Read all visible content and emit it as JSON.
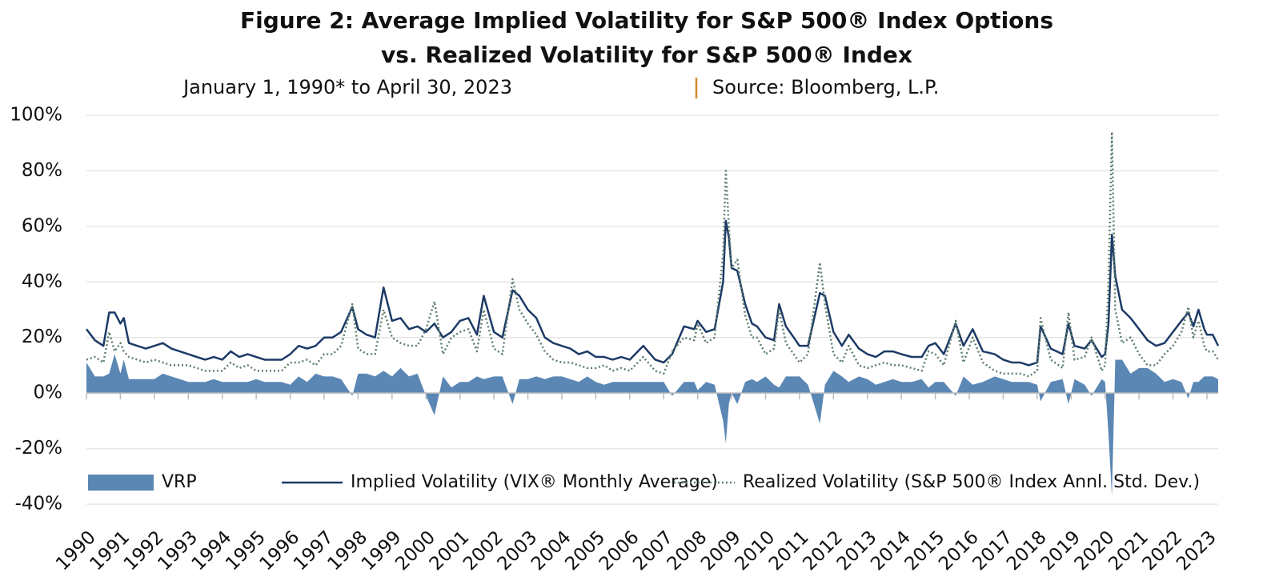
{
  "chart_data": {
    "type": "line",
    "title": [
      "Figure 2: Average Implied Volatility for S&P 500® Index Options",
      "vs. Realized Volatility for S&P 500® Index"
    ],
    "subtitle": [
      "January 1, 1990* to April 30, 2023",
      "Source: Bloomberg, L.P."
    ],
    "x": [
      1990.0,
      1990.25,
      1990.5,
      1990.67,
      1990.83,
      1991.0,
      1991.1,
      1991.25,
      1991.5,
      1991.75,
      1992.0,
      1992.25,
      1992.5,
      1992.75,
      1993.0,
      1993.25,
      1993.5,
      1993.75,
      1994.0,
      1994.25,
      1994.5,
      1994.75,
      1995.0,
      1995.25,
      1995.5,
      1995.75,
      1996.0,
      1996.25,
      1996.5,
      1996.75,
      1997.0,
      1997.25,
      1997.5,
      1997.83,
      1998.0,
      1998.25,
      1998.5,
      1998.75,
      1999.0,
      1999.25,
      1999.5,
      1999.75,
      2000.0,
      2000.25,
      2000.5,
      2000.75,
      2001.0,
      2001.25,
      2001.5,
      2001.7,
      2002.0,
      2002.25,
      2002.55,
      2002.75,
      2003.0,
      2003.25,
      2003.5,
      2003.75,
      2004.0,
      2004.25,
      2004.5,
      2004.75,
      2005.0,
      2005.25,
      2005.5,
      2005.75,
      2006.0,
      2006.4,
      2006.75,
      2007.0,
      2007.25,
      2007.6,
      2007.9,
      2008.0,
      2008.25,
      2008.5,
      2008.75,
      2008.83,
      2008.92,
      2009.0,
      2009.17,
      2009.4,
      2009.6,
      2009.75,
      2010.0,
      2010.25,
      2010.4,
      2010.6,
      2010.83,
      2011.0,
      2011.25,
      2011.6,
      2011.75,
      2012.0,
      2012.25,
      2012.45,
      2012.75,
      2013.0,
      2013.25,
      2013.5,
      2013.75,
      2014.0,
      2014.3,
      2014.6,
      2014.8,
      2015.0,
      2015.25,
      2015.6,
      2015.83,
      2016.1,
      2016.4,
      2016.75,
      2017.0,
      2017.25,
      2017.5,
      2017.75,
      2018.0,
      2018.1,
      2018.4,
      2018.75,
      2018.92,
      2019.1,
      2019.4,
      2019.6,
      2019.9,
      2020.0,
      2020.1,
      2020.2,
      2020.3,
      2020.5,
      2020.75,
      2021.0,
      2021.25,
      2021.5,
      2021.75,
      2022.0,
      2022.25,
      2022.45,
      2022.6,
      2022.75,
      2022.92,
      2023.0,
      2023.17,
      2023.33
    ],
    "series": [
      {
        "name": "VRP",
        "type": "area",
        "color": "#5b87b5",
        "values": [
          11,
          6,
          6,
          7,
          14,
          7,
          12,
          5,
          5,
          5,
          5,
          7,
          6,
          5,
          4,
          4,
          4,
          5,
          4,
          4,
          4,
          4,
          5,
          4,
          4,
          4,
          3,
          6,
          4,
          7,
          6,
          6,
          5,
          -1,
          7,
          7,
          6,
          8,
          6,
          9,
          6,
          7,
          -1,
          -8,
          6,
          2,
          4,
          4,
          6,
          5,
          6,
          6,
          -4,
          5,
          5,
          6,
          5,
          6,
          6,
          5,
          4,
          6,
          4,
          3,
          4,
          4,
          4,
          4,
          4,
          4,
          -1,
          4,
          4,
          1,
          4,
          3,
          -10,
          -18,
          -4,
          0,
          -4,
          4,
          5,
          4,
          6,
          3,
          2,
          6,
          6,
          6,
          3,
          -11,
          3,
          8,
          6,
          4,
          6,
          5,
          3,
          4,
          5,
          4,
          4,
          5,
          2,
          4,
          4,
          -1,
          6,
          3,
          4,
          6,
          5,
          4,
          4,
          4,
          3,
          -3,
          4,
          5,
          -4,
          5,
          3,
          -1,
          5,
          4,
          -15,
          -37,
          12,
          12,
          7,
          9,
          9,
          7,
          4,
          5,
          4,
          -2,
          4,
          4,
          6,
          6,
          6,
          5
        ]
      },
      {
        "name": "Implied Volatility (VIX® Monthly Average)",
        "type": "line",
        "dash": "solid",
        "color": "#1c3a66",
        "values": [
          23,
          19,
          17,
          29,
          29,
          25,
          27,
          18,
          17,
          16,
          17,
          18,
          16,
          15,
          14,
          13,
          12,
          13,
          12,
          15,
          13,
          14,
          13,
          12,
          12,
          12,
          14,
          17,
          16,
          17,
          20,
          20,
          22,
          31,
          23,
          21,
          20,
          38,
          26,
          27,
          23,
          24,
          22,
          25,
          20,
          22,
          26,
          27,
          21,
          35,
          22,
          20,
          37,
          35,
          30,
          27,
          20,
          18,
          17,
          16,
          14,
          15,
          13,
          13,
          12,
          13,
          12,
          17,
          12,
          11,
          14,
          24,
          23,
          26,
          22,
          23,
          40,
          62,
          56,
          45,
          44,
          32,
          25,
          24,
          20,
          19,
          32,
          24,
          20,
          17,
          17,
          36,
          35,
          22,
          17,
          21,
          16,
          14,
          13,
          15,
          15,
          14,
          13,
          13,
          17,
          18,
          14,
          25,
          17,
          23,
          15,
          14,
          12,
          11,
          11,
          10,
          11,
          24,
          16,
          14,
          25,
          17,
          16,
          19,
          13,
          14,
          25,
          57,
          42,
          30,
          27,
          23,
          19,
          17,
          18,
          22,
          26,
          29,
          24,
          30,
          23,
          21,
          21,
          17
        ]
      },
      {
        "name": "Realized Volatility (S&P 500® Index Annl. Std. Dev.)",
        "type": "line",
        "dash": "dotted",
        "color": "#5e7f6e",
        "values": [
          12,
          13,
          11,
          22,
          15,
          18,
          15,
          13,
          12,
          11,
          12,
          11,
          10,
          10,
          10,
          9,
          8,
          8,
          8,
          11,
          9,
          10,
          8,
          8,
          8,
          8,
          11,
          11,
          12,
          10,
          14,
          14,
          17,
          32,
          16,
          14,
          14,
          30,
          20,
          18,
          17,
          17,
          23,
          33,
          14,
          20,
          22,
          23,
          15,
          30,
          16,
          14,
          41,
          30,
          25,
          21,
          15,
          12,
          11,
          11,
          10,
          9,
          9,
          10,
          8,
          9,
          8,
          13,
          8,
          7,
          15,
          20,
          19,
          25,
          18,
          20,
          50,
          80,
          60,
          45,
          48,
          28,
          20,
          20,
          14,
          16,
          30,
          18,
          14,
          11,
          14,
          47,
          32,
          14,
          11,
          17,
          10,
          9,
          10,
          11,
          10,
          10,
          9,
          8,
          15,
          14,
          10,
          26,
          11,
          20,
          11,
          8,
          7,
          7,
          7,
          6,
          8,
          27,
          12,
          9,
          29,
          12,
          13,
          20,
          8,
          10,
          40,
          94,
          30,
          18,
          20,
          14,
          10,
          10,
          14,
          17,
          22,
          31,
          20,
          26,
          17,
          15,
          15,
          12
        ]
      }
    ],
    "xlim": [
      1990,
      2023.33
    ],
    "xticks": [
      1990,
      1991,
      1992,
      1993,
      1994,
      1995,
      1996,
      1997,
      1998,
      1999,
      2000,
      2001,
      2002,
      2003,
      2004,
      2005,
      2006,
      2007,
      2008,
      2009,
      2010,
      2011,
      2012,
      2013,
      2014,
      2015,
      2016,
      2017,
      2018,
      2019,
      2020,
      2021,
      2022,
      2023
    ],
    "ylim": [
      -40,
      100
    ],
    "yticks": [
      {
        "value": -40,
        "label": "-40%"
      },
      {
        "value": -20,
        "label": "-20%"
      },
      {
        "value": 0,
        "label": "0%"
      },
      {
        "value": 20,
        "label": "20%"
      },
      {
        "value": 40,
        "label": "40%"
      },
      {
        "value": 60,
        "label": "60%"
      },
      {
        "value": 80,
        "label": "80%"
      },
      {
        "value": 100,
        "label": "100%"
      }
    ],
    "grid": true,
    "legend": "bottom"
  }
}
